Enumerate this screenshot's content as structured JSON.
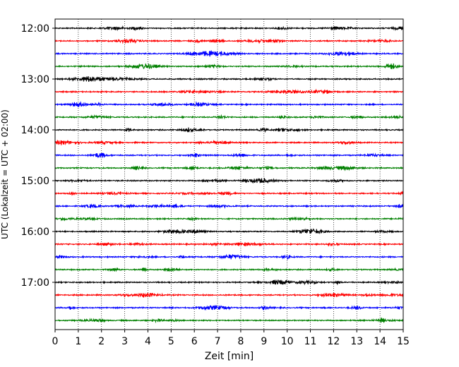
{
  "chart_data": {
    "type": "line",
    "title": "",
    "xlabel": "Zeit  [min]",
    "ylabel": "UTC (Lokalzeit = UTC + 02:00)",
    "xlim": [
      0,
      15
    ],
    "x_ticks": [
      "0",
      "1",
      "2",
      "3",
      "4",
      "5",
      "6",
      "7",
      "8",
      "9",
      "10",
      "11",
      "12",
      "13",
      "14",
      "15"
    ],
    "y_ticks": [
      "12:00",
      "13:00",
      "14:00",
      "15:00",
      "16:00",
      "17:00"
    ],
    "grid": "vertical dotted",
    "trace_interval_min": 15,
    "start_time": "12:00",
    "end_time": "17:45",
    "trace_colors": [
      "#000000",
      "#ff0000",
      "#0000ff",
      "#008000"
    ],
    "trace_count": 24
  }
}
